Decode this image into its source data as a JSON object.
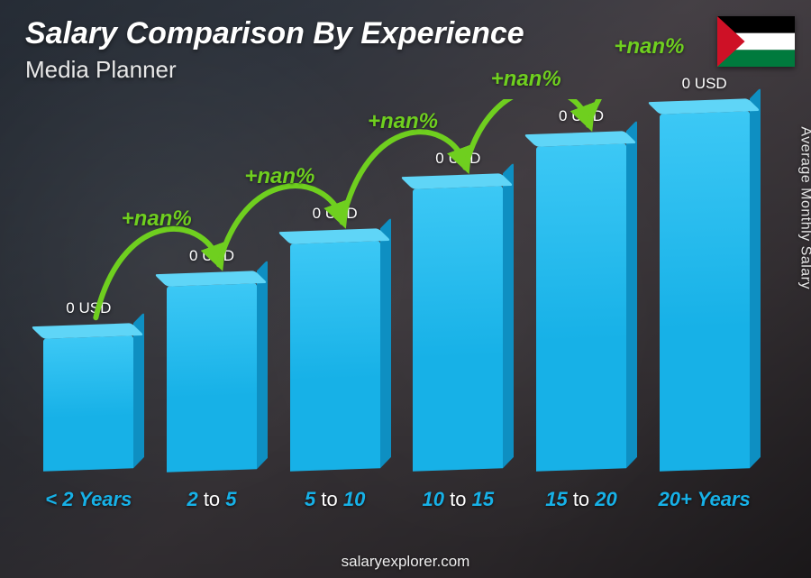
{
  "title": "Salary Comparison By Experience",
  "subtitle": "Media Planner",
  "yAxisLabel": "Average Monthly Salary",
  "footer": "salaryexplorer.com",
  "flag": {
    "name": "palestine-flag",
    "stripes": [
      "#000000",
      "#ffffff",
      "#007a3d"
    ],
    "triangle": "#ce1126"
  },
  "colors": {
    "barFront": "#17b1e7",
    "barFrontGradientTop": "#3cc8f5",
    "barTop": "#5fd5f7",
    "barSide": "#0e8fc2",
    "arcStroke": "#6fcf1f",
    "arcLabel": "#6fcf1f",
    "accentText": "#17b1e7",
    "valueText": "#ffffff",
    "titleText": "#ffffff",
    "subtitleText": "#e8e8e8",
    "footerText": "#eeeeee"
  },
  "chart": {
    "type": "bar",
    "barWidthPx": 100,
    "slotWidthPx": 120,
    "plotMaxValue": 420,
    "bars": [
      {
        "category": "< 2 Years",
        "catParts": [
          "< 2",
          " Years"
        ],
        "valueLabel": "0 USD",
        "heightUnits": 150
      },
      {
        "category": "2 to 5",
        "catParts": [
          "2",
          " to ",
          "5"
        ],
        "valueLabel": "0 USD",
        "heightUnits": 210
      },
      {
        "category": "5 to 10",
        "catParts": [
          "5",
          " to ",
          "10"
        ],
        "valueLabel": "0 USD",
        "heightUnits": 258
      },
      {
        "category": "10 to 15",
        "catParts": [
          "10",
          " to ",
          "15"
        ],
        "valueLabel": "0 USD",
        "heightUnits": 320
      },
      {
        "category": "15 to 20",
        "catParts": [
          "15",
          " to ",
          "20"
        ],
        "valueLabel": "0 USD",
        "heightUnits": 368
      },
      {
        "category": "20+ Years",
        "catParts": [
          "20+",
          " Years"
        ],
        "valueLabel": "0 USD",
        "heightUnits": 405
      }
    ],
    "arcs": [
      {
        "label": "+nan%"
      },
      {
        "label": "+nan%"
      },
      {
        "label": "+nan%"
      },
      {
        "label": "+nan%"
      },
      {
        "label": "+nan%"
      }
    ]
  }
}
